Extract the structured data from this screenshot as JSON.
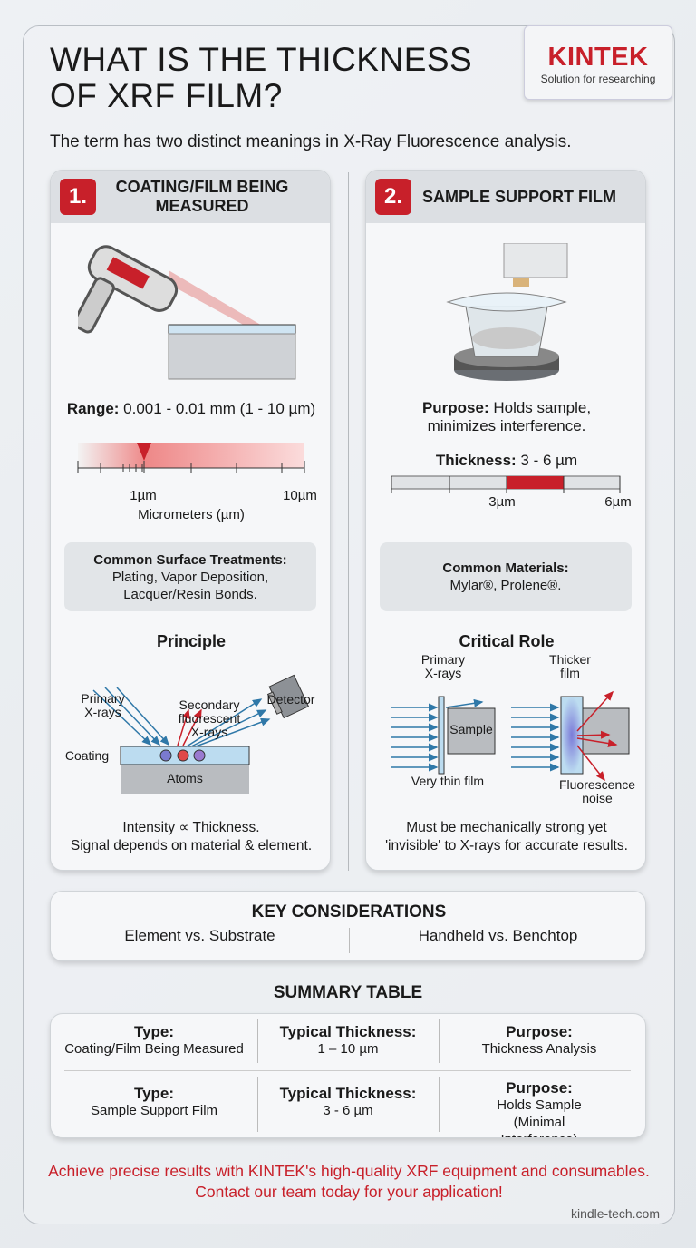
{
  "brand": {
    "name": "KINTEK",
    "tagline": "Solution for researching"
  },
  "title": "WHAT IS THE THICKNESS OF XRF FILM?",
  "subtitle": "The term has two distinct meanings in X-Ray Fluorescence analysis.",
  "left": {
    "number": "1.",
    "heading": "COATING/FILM BEING MEASURED",
    "range_label": "Range:",
    "range_value": " 0.001 - 0.01 mm (1 - 10 µm)",
    "scale_min": "1µm",
    "scale_max": "10µm",
    "scale_unit": "Micrometers (µm)",
    "treat_title": "Common Surface Treatments:",
    "treat_text": "Plating, Vapor Deposition, Lacquer/Resin Bonds.",
    "principle_title": "Principle",
    "lbl_primary": [
      "Primary",
      "X-rays"
    ],
    "lbl_secondary": [
      "Secondary",
      "fluorescent",
      "X-rays"
    ],
    "lbl_detector": "Detector",
    "lbl_coating": "Coating",
    "lbl_atoms": "Atoms",
    "caption": [
      "Intensity ∝ Thickness.",
      "Signal depends on material & element."
    ]
  },
  "right": {
    "number": "2.",
    "heading": "SAMPLE SUPPORT FILM",
    "purpose_label": "Purpose:",
    "purpose_value": " Holds sample, minimizes interference.",
    "thick_label": "Thickness:",
    "thick_value": " 3 - 6 µm",
    "scale_a": "3µm",
    "scale_b": "6µm",
    "mat_title": "Common Materials:",
    "mat_text": "Mylar®, Prolene®.",
    "role_title": "Critical Role",
    "lbl_primary": [
      "Primary",
      "X-rays"
    ],
    "lbl_sample": "Sample",
    "lbl_thin": "Very thin film",
    "lbl_thicker": [
      "Thicker",
      "film"
    ],
    "lbl_noise": [
      "Fluorescence",
      "noise"
    ],
    "caption": [
      "Must be mechanically strong yet",
      "'invisible' to X-rays for accurate results."
    ]
  },
  "key": {
    "title": "KEY CONSIDERATIONS",
    "items": [
      "Element vs. Substrate",
      "Handheld vs. Benchtop"
    ]
  },
  "summary": {
    "title": "SUMMARY TABLE",
    "rows": [
      [
        {
          "h": "Type:",
          "v": "Coating/Film Being Measured"
        },
        {
          "h": "Typical Thickness:",
          "v": "1 – 10 µm"
        },
        {
          "h": "Purpose:",
          "v": "Thickness Analysis"
        }
      ],
      [
        {
          "h": "Type:",
          "v": "Sample Support Film"
        },
        {
          "h": "Typical Thickness:",
          "v": "3 - 6 µm"
        },
        {
          "h": "Purpose:",
          "v": "Holds Sample (Minimal Interference)"
        }
      ]
    ]
  },
  "footer": "Achieve precise results with KINTEK's high-quality XRF equipment and consumables. Contact our team today for your application!",
  "site": "kindle-tech.com",
  "colors": {
    "accent": "#c8202a",
    "xray": "#2f78a8"
  }
}
